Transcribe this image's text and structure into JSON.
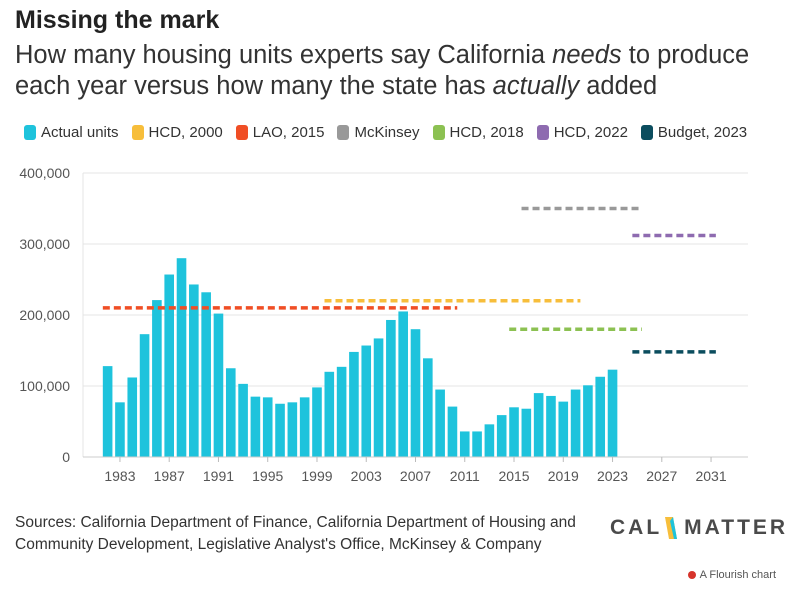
{
  "header": {
    "title": "Missing the mark",
    "subtitle_parts": [
      "How many housing units experts say California ",
      "needs",
      " to produce each year versus how many the state has ",
      "actually",
      " added"
    ]
  },
  "legend": [
    {
      "label": "Actual units",
      "color": "#1ec3dc"
    },
    {
      "label": "HCD, 2000",
      "color": "#f7be3b"
    },
    {
      "label": "LAO, 2015",
      "color": "#f04e25"
    },
    {
      "label": "McKinsey",
      "color": "#999999"
    },
    {
      "label": "HCD, 2018",
      "color": "#8cc152"
    },
    {
      "label": "HCD, 2022",
      "color": "#8e6bb0"
    },
    {
      "label": "Budget, 2023",
      "color": "#0b4d5e"
    }
  ],
  "chart_data": {
    "type": "bar",
    "x": [
      1982,
      1983,
      1984,
      1985,
      1986,
      1987,
      1988,
      1989,
      1990,
      1991,
      1992,
      1993,
      1994,
      1995,
      1996,
      1997,
      1998,
      1999,
      2000,
      2001,
      2002,
      2003,
      2004,
      2005,
      2006,
      2007,
      2008,
      2009,
      2010,
      2011,
      2012,
      2013,
      2014,
      2015,
      2016,
      2017,
      2018,
      2019,
      2020,
      2021,
      2022,
      2023
    ],
    "series": [
      {
        "name": "Actual units",
        "type": "bar",
        "color": "#1ec3dc",
        "values": [
          128000,
          77000,
          112000,
          173000,
          221000,
          257000,
          280000,
          243000,
          232000,
          202000,
          125000,
          103000,
          85000,
          84000,
          75000,
          77000,
          84000,
          98000,
          120000,
          127000,
          148000,
          157000,
          167000,
          193000,
          205000,
          180000,
          139000,
          95000,
          71000,
          36000,
          36000,
          46000,
          59000,
          70000,
          68000,
          90000,
          86000,
          78000,
          95000,
          101000,
          113000,
          123000
        ]
      },
      {
        "name": "HCD, 2000",
        "type": "target",
        "color": "#f7be3b",
        "x_range": [
          2000,
          2020
        ],
        "value": 220000
      },
      {
        "name": "LAO, 2015",
        "type": "target",
        "color": "#f04e25",
        "x_range": [
          1982,
          2010
        ],
        "value": 210000
      },
      {
        "name": "McKinsey",
        "type": "target",
        "color": "#999999",
        "x_range": [
          2016,
          2025
        ],
        "value": 350000
      },
      {
        "name": "HCD, 2018",
        "type": "target",
        "color": "#8cc152",
        "x_range": [
          2015,
          2025
        ],
        "value": 180000
      },
      {
        "name": "HCD, 2022",
        "type": "target",
        "color": "#8e6bb0",
        "x_range": [
          2025,
          2031
        ],
        "value": 312000
      },
      {
        "name": "Budget, 2023",
        "type": "target",
        "color": "#0b4d5e",
        "x_range": [
          2025,
          2031
        ],
        "value": 148000
      }
    ],
    "ylim": [
      0,
      400000
    ],
    "yticks": [
      0,
      100000,
      200000,
      300000,
      400000
    ],
    "ytick_labels": [
      "0",
      "100,000",
      "200,000",
      "300,000",
      "400,000"
    ],
    "xlim": [
      1980,
      2034
    ],
    "xticks": [
      1983,
      1987,
      1991,
      1995,
      1999,
      2003,
      2007,
      2011,
      2015,
      2019,
      2023,
      2027,
      2031
    ],
    "xtick_labels": [
      "1983",
      "1987",
      "1991",
      "1995",
      "1999",
      "2003",
      "2007",
      "2011",
      "2015",
      "2019",
      "2023",
      "2027",
      "2031"
    ],
    "grid": true,
    "legend_position": "top-left"
  },
  "footer": {
    "source": "Sources: California Department of Finance, California Department of Housing and Community Development, Legislative Analyst's Office, McKinsey & Company",
    "logo_left": "CAL",
    "logo_right": "MATTERS",
    "credit": "A Flourish chart"
  }
}
